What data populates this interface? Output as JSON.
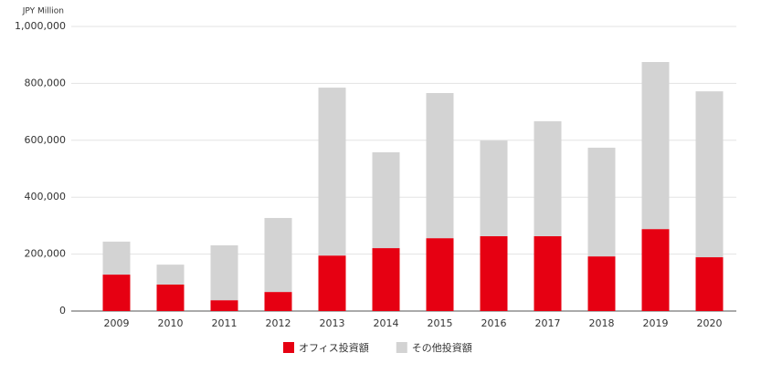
{
  "chart_data": {
    "type": "stacked_bar",
    "y_axis_label": "JPY Million",
    "categories": [
      "2009",
      "2010",
      "2011",
      "2012",
      "2013",
      "2014",
      "2015",
      "2016",
      "2017",
      "2018",
      "2019",
      "2020"
    ],
    "series": [
      {
        "name": "オフィス投資額",
        "color": "#e60012",
        "values": [
          128000,
          93000,
          38000,
          67000,
          195000,
          221000,
          256000,
          263000,
          263000,
          192000,
          288000,
          189000
        ]
      },
      {
        "name": "その他投資額",
        "color": "#d3d3d3",
        "values": [
          116000,
          70000,
          193000,
          260000,
          590000,
          337000,
          510000,
          336000,
          404000,
          382000,
          587000,
          583000
        ]
      }
    ],
    "ylim": [
      0,
      1000000
    ],
    "yticks": [
      0,
      {
        "value": 200000,
        "label": "200,000"
      },
      {
        "value": 400000,
        "label": "400,000"
      },
      {
        "value": 600000,
        "label": "600,000"
      },
      {
        "value": 800000,
        "label": "800,000"
      },
      {
        "value": 1000000,
        "label": "1,000,000"
      }
    ],
    "grid": true,
    "legend": "bottom"
  }
}
